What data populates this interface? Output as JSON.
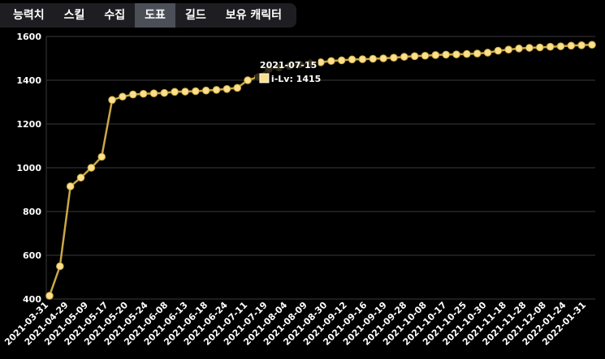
{
  "tabs": [
    {
      "label": "능력치",
      "active": false
    },
    {
      "label": "스킬",
      "active": false
    },
    {
      "label": "수집",
      "active": false
    },
    {
      "label": "도표",
      "active": true
    },
    {
      "label": "길드",
      "active": false
    },
    {
      "label": "보유 캐릭터",
      "active": false
    }
  ],
  "colors": {
    "line": "#c9a845",
    "point": "#fde08b",
    "grid": "#3a3a3a",
    "legend_swatch": "#fde08b"
  },
  "chart_data": {
    "type": "line",
    "series": [
      {
        "name": "i-Lv",
        "values": [
          415,
          550,
          915,
          955,
          1000,
          1050,
          1310,
          1325,
          1335,
          1338,
          1340,
          1342,
          1347,
          1348,
          1350,
          1353,
          1356,
          1360,
          1365,
          1400,
          1415,
          1450,
          1458,
          1465,
          1472,
          1478,
          1482,
          1488,
          1491,
          1495,
          1496,
          1498,
          1500,
          1503,
          1507,
          1510,
          1512,
          1515,
          1517,
          1518,
          1520,
          1522,
          1526,
          1535,
          1540,
          1545,
          1548,
          1550,
          1553,
          1555,
          1558,
          1560,
          1562
        ]
      }
    ],
    "x_tick_labels": [
      "2021-03-31",
      "2021-04-29",
      "2021-05-09",
      "2021-05-17",
      "2021-05-20",
      "2021-05-24",
      "2021-06-08",
      "2021-06-13",
      "2021-06-18",
      "2021-06-24",
      "2021-07-11",
      "2021-07-19",
      "2021-08-04",
      "2021-08-09",
      "2021-08-30",
      "2021-09-12",
      "2021-09-16",
      "2021-09-19",
      "2021-09-28",
      "2021-10-08",
      "2021-10-17",
      "2021-10-25",
      "2021-10-30",
      "2021-11-18",
      "2021-11-28",
      "2021-12-08",
      "2022-01-24",
      "2022-01-31"
    ],
    "y_ticks": [
      400,
      600,
      800,
      1000,
      1200,
      1400,
      1600
    ],
    "ylim": [
      400,
      1600
    ],
    "grid": true,
    "tooltip": {
      "title": "2021-07-15",
      "label": "i-Lv: 1415",
      "point_index": 20
    }
  }
}
